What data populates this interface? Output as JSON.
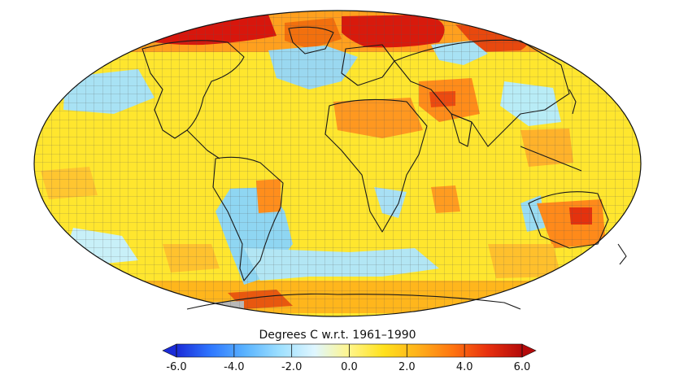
{
  "map": {
    "projection": "Mollweide",
    "grid_cells": true,
    "colors": {
      "ocean_pale_blue": "#9fe2f2",
      "light_blue": "#8fd4f0",
      "yellow": "#fff35a",
      "yellow_orange": "#ffd234",
      "orange": "#ffa21e",
      "dark_orange": "#f77712",
      "red": "#e83010",
      "dark_red": "#c81008",
      "missing_grey": "#b8b8b8",
      "coastline": "#1a1a1a",
      "grid_line": "#555555"
    }
  },
  "colorbar": {
    "title": "Degrees C w.r.t. 1961–1990",
    "ticks": [
      "-6.0",
      "-4.0",
      "-2.0",
      "0.0",
      "2.0",
      "4.0",
      "6.0"
    ],
    "range": [
      -6.0,
      6.0
    ],
    "stops": [
      "#1a2bd8",
      "#2f78ff",
      "#5bb4ff",
      "#9ee0ff",
      "#dff6ff",
      "#fff58a",
      "#ffe11c",
      "#ffb01a",
      "#ff7410",
      "#e8300e",
      "#b40a0a"
    ]
  }
}
